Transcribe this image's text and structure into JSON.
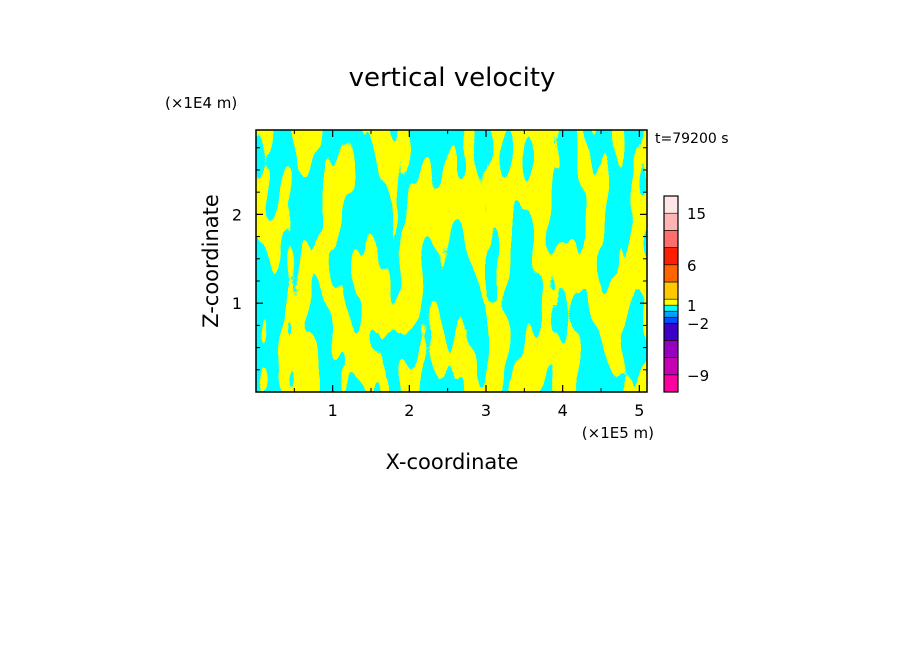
{
  "chart_data": {
    "type": "heatmap",
    "title": "vertical velocity",
    "xlabel": "X-coordinate",
    "ylabel": "Z-coordinate",
    "x_unit": "(×1E5 m)",
    "y_unit": "(×1E4 m)",
    "time_label": "t=79200 s",
    "xlim": [
      0,
      5.1
    ],
    "ylim": [
      0,
      2.95
    ],
    "x_ticks": [
      1,
      2,
      3,
      4,
      5
    ],
    "y_ticks": [
      1,
      2
    ],
    "x_tick_labels": [
      "1",
      "2",
      "3",
      "4",
      "5"
    ],
    "y_tick_labels": [
      "1",
      "2"
    ],
    "colorbar": {
      "levels": [
        -12,
        -9,
        -6,
        -4,
        -2,
        -1,
        0,
        1,
        2,
        4,
        6,
        9,
        12,
        15,
        18
      ],
      "colors": [
        "#ff00a0",
        "#c800b4",
        "#9600be",
        "#3c00c8",
        "#0050ff",
        "#00a0ff",
        "#00ffff",
        "#ffff00",
        "#ffc800",
        "#ff6400",
        "#ff1e00",
        "#ff6e6e",
        "#ffb4b4",
        "#ffe6e6"
      ],
      "labeled_ticks": [
        15,
        6,
        1,
        -2,
        -9
      ],
      "labeled_tick_text": [
        "15",
        "6",
        "1",
        "−2",
        "−9"
      ]
    },
    "field_colors": {
      "positive": "#ffff00",
      "negative": "#00ffff"
    }
  }
}
